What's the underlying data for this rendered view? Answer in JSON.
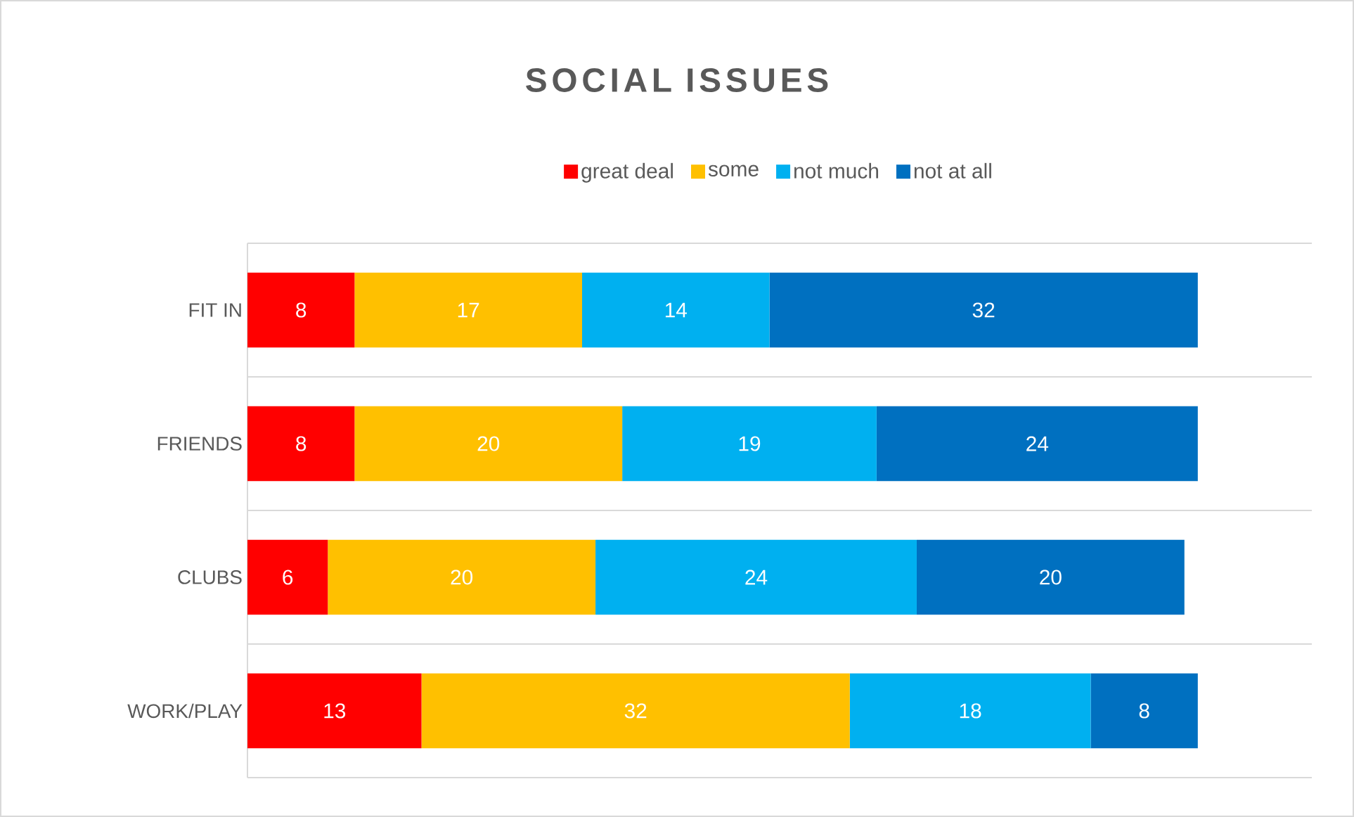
{
  "chart_data": {
    "type": "bar",
    "orientation": "horizontal",
    "stacked": true,
    "title": "SOCIAL ISSUES",
    "categories": [
      "FIT IN",
      "FRIENDS",
      "CLUBS",
      "WORK/PLAY"
    ],
    "series": [
      {
        "name": "great deal",
        "color": "#ff0000",
        "values": [
          8,
          8,
          6,
          13
        ]
      },
      {
        "name": "some",
        "color": "#ffc000",
        "values": [
          17,
          20,
          20,
          32
        ]
      },
      {
        "name": "not much",
        "color": "#00b0f0",
        "values": [
          14,
          19,
          24,
          18
        ]
      },
      {
        "name": "not at all",
        "color": "#0070c0",
        "values": [
          32,
          24,
          20,
          8
        ]
      }
    ],
    "tick_labels": "y",
    "grid": "y",
    "legend": "top",
    "data_labels": true
  }
}
